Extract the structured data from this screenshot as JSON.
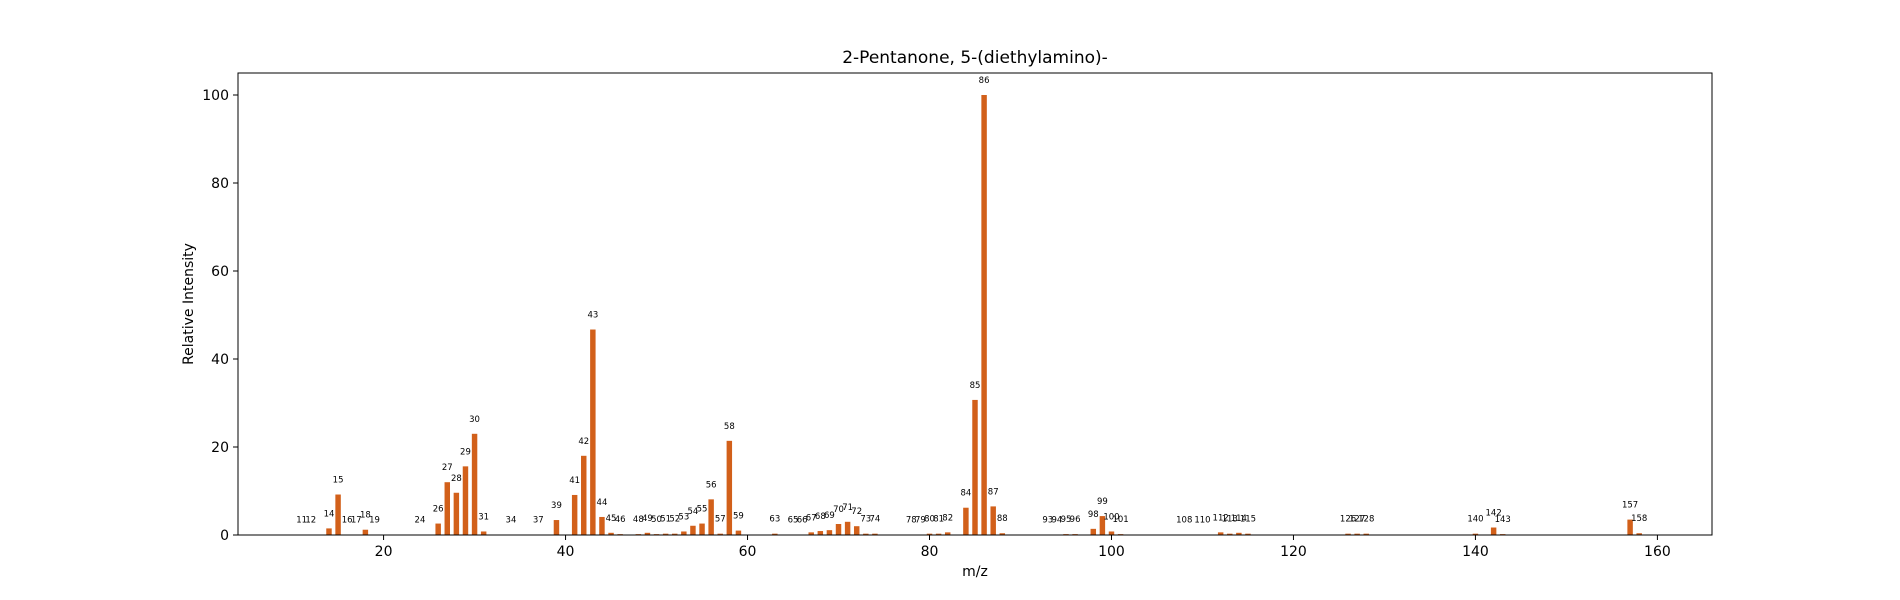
{
  "chart_data": {
    "type": "bar",
    "title": "2-Pentanone, 5-(diethylamino)-",
    "xlabel": "m/z",
    "ylabel": "Relative Intensity",
    "xlim": [
      4,
      166
    ],
    "ylim": [
      0,
      105
    ],
    "xticks": [
      20,
      40,
      60,
      80,
      100,
      120,
      140,
      160
    ],
    "yticks": [
      0,
      20,
      40,
      60,
      80,
      100
    ],
    "bar_color": "#d2601a",
    "grid": false,
    "x": [
      11,
      12,
      14,
      15,
      16,
      17,
      18,
      19,
      24,
      26,
      27,
      28,
      29,
      30,
      31,
      34,
      37,
      39,
      41,
      42,
      43,
      44,
      45,
      46,
      48,
      49,
      50,
      51,
      52,
      53,
      54,
      55,
      56,
      57,
      58,
      59,
      63,
      65,
      66,
      67,
      68,
      69,
      70,
      71,
      72,
      73,
      74,
      78,
      79,
      80,
      81,
      82,
      84,
      85,
      86,
      87,
      88,
      93,
      94,
      95,
      96,
      98,
      99,
      100,
      101,
      108,
      110,
      112,
      113,
      114,
      115,
      126,
      127,
      128,
      140,
      142,
      143,
      157,
      158
    ],
    "values": [
      0.1,
      0.1,
      1.5,
      9.2,
      0.1,
      0.1,
      1.2,
      0.1,
      0.1,
      2.6,
      12.0,
      9.6,
      15.6,
      23.0,
      0.8,
      0.1,
      0.1,
      3.4,
      9.1,
      18.0,
      46.7,
      4.1,
      0.5,
      0.2,
      0.2,
      0.5,
      0.2,
      0.3,
      0.3,
      0.8,
      2.1,
      2.6,
      8.1,
      0.3,
      21.4,
      1.0,
      0.3,
      0.1,
      0.1,
      0.6,
      0.9,
      1.1,
      2.5,
      3.0,
      2.0,
      0.3,
      0.3,
      0.1,
      0.1,
      0.3,
      0.3,
      0.6,
      6.2,
      30.7,
      100.0,
      6.5,
      0.4,
      0.1,
      0.1,
      0.2,
      0.2,
      1.4,
      4.3,
      0.8,
      0.2,
      0.1,
      0.1,
      0.6,
      0.3,
      0.5,
      0.3,
      0.3,
      0.3,
      0.3,
      0.3,
      1.7,
      0.2,
      3.5,
      0.4
    ]
  }
}
